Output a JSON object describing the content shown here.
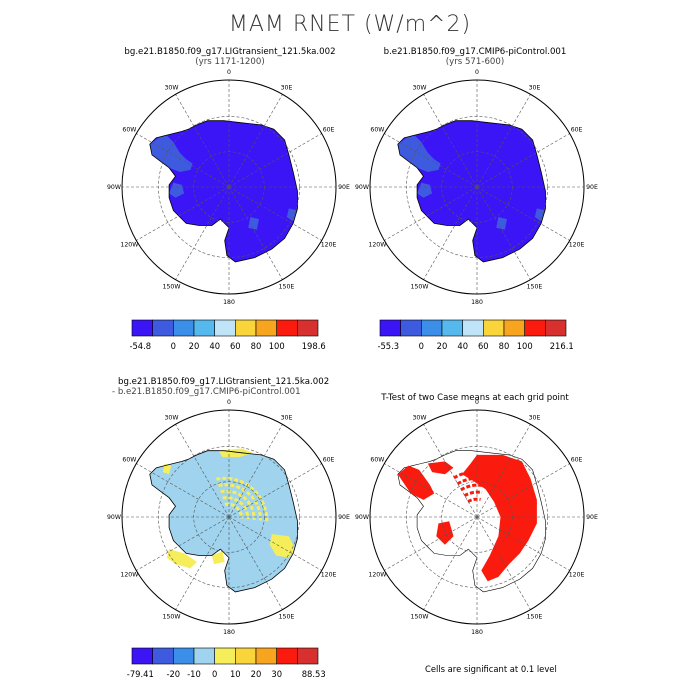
{
  "title": "MAM RNET (W/m^2)",
  "panels": [
    {
      "title": "bg.e21.B1850.f09_g17.LIGtransient_121.5ka.002",
      "subtitle": "(yrs 1171-1200)",
      "colorbar": {
        "colors": [
          "#3b15f5",
          "#3e5be0",
          "#3b8fe8",
          "#56b9ee",
          "#bfe4f7",
          "#f9d43a",
          "#f7a41e",
          "#fb1b0e",
          "#d8302e"
        ],
        "labels": [
          "-54.8",
          "0",
          "20",
          "40",
          "60",
          "80",
          "100",
          "198.6"
        ]
      }
    },
    {
      "title": "b.e21.B1850.f09_g17.CMIP6-piControl.001",
      "subtitle": "(yrs 571-600)",
      "colorbar": {
        "colors": [
          "#3b15f5",
          "#3e5be0",
          "#3b8fe8",
          "#56b9ee",
          "#bfe4f7",
          "#f9d43a",
          "#f7a41e",
          "#fb1b0e",
          "#d8302e"
        ],
        "labels": [
          "-55.3",
          "0",
          "20",
          "40",
          "60",
          "80",
          "100",
          "216.1"
        ]
      }
    },
    {
      "title_line1": "bg.e21.B1850.f09_g17.LIGtransient_121.5ka.002",
      "title_line2": "- b.e21.B1850.f09_g17.CMIP6-piControl.001",
      "colorbar": {
        "colors": [
          "#3b15f5",
          "#3e5be0",
          "#3b8fe8",
          "#9fd3ee",
          "#f5ee5a",
          "#f9d43a",
          "#f7a41e",
          "#fb1b0e",
          "#d8302e"
        ],
        "labels": [
          "-79.41",
          "-20",
          "-10",
          "0",
          "10",
          "20",
          "30",
          "88.53"
        ]
      }
    },
    {
      "title": "T-Test of two Case means at each grid point",
      "note": "Cells are significant at 0.1 level"
    }
  ],
  "lon_labels": [
    "0",
    "30E",
    "60E",
    "90E",
    "120E",
    "150E",
    "180",
    "150W",
    "120W",
    "90W",
    "60W",
    "30W"
  ],
  "field_colors": {
    "abs_field": "#3b15f5",
    "abs_coast": "#3e5be0",
    "diff_field": "#9fd3ee",
    "diff_pos": "#f5ee5a",
    "ttest_sig": "#fb1b0e"
  }
}
